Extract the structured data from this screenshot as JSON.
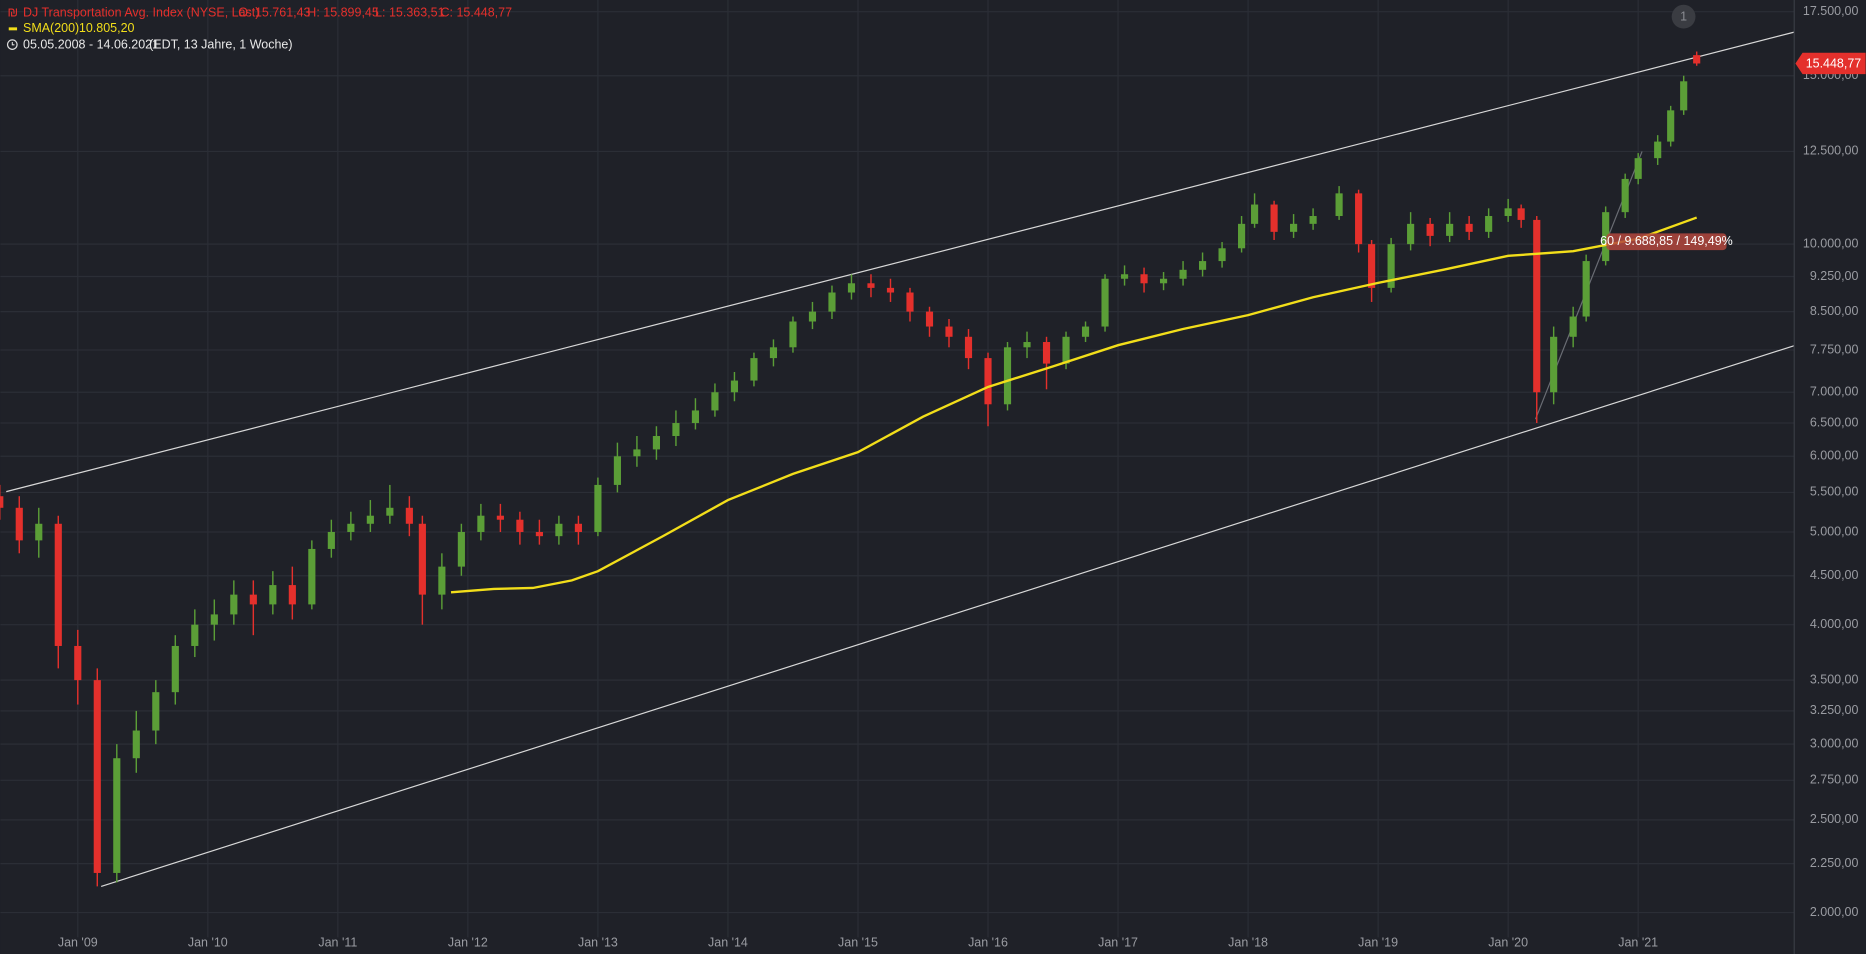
{
  "chart_data": {
    "type": "candlestick",
    "title": "DJ Transportation Avg. Index (NYSE, Last)",
    "ohlc_text": [
      "O: 15.761,43",
      "H: 15.899,45",
      "L: 15.363,51",
      "C: 15.448,77"
    ],
    "sma_text": "10.805,20",
    "period": "05.05.2008 - 14.06.2021",
    "period_note": "(EDT, 13 Jahre, 1 Woche)",
    "badge": "1",
    "log_scale": true,
    "grid": true,
    "up_color": "#5b9e37",
    "down_color": "#e4302c",
    "xlim": [
      2008.405,
      2022.2
    ],
    "xticks": [
      {
        "value": 2009,
        "label": "Jan '09"
      },
      {
        "value": 2010,
        "label": "Jan '10"
      },
      {
        "value": 2011,
        "label": "Jan '11"
      },
      {
        "value": 2012,
        "label": "Jan '12"
      },
      {
        "value": 2013,
        "label": "Jan '13"
      },
      {
        "value": 2014,
        "label": "Jan '14"
      },
      {
        "value": 2015,
        "label": "Jan '15"
      },
      {
        "value": 2016,
        "label": "Jan '16"
      },
      {
        "value": 2017,
        "label": "Jan '17"
      },
      {
        "value": 2018,
        "label": "Jan '18"
      },
      {
        "value": 2019,
        "label": "Jan '19"
      },
      {
        "value": 2020,
        "label": "Jan '20"
      },
      {
        "value": 2021,
        "label": "Jan '21"
      }
    ],
    "ylim": [
      1810,
      18000
    ],
    "yticks": [
      {
        "value": 2000,
        "label": "2.000,00"
      },
      {
        "value": 2250,
        "label": "2.250,00"
      },
      {
        "value": 2500,
        "label": "2.500,00"
      },
      {
        "value": 2750,
        "label": "2.750,00"
      },
      {
        "value": 3000,
        "label": "3.000,00"
      },
      {
        "value": 3250,
        "label": "3.250,00"
      },
      {
        "value": 3500,
        "label": "3.500,00"
      },
      {
        "value": 4000,
        "label": "4.000,00"
      },
      {
        "value": 4500,
        "label": "4.500,00"
      },
      {
        "value": 5000,
        "label": "5.000,00"
      },
      {
        "value": 5500,
        "label": "5.500,00"
      },
      {
        "value": 6000,
        "label": "6.000,00"
      },
      {
        "value": 6500,
        "label": "6.500,00"
      },
      {
        "value": 7000,
        "label": "7.000,00"
      },
      {
        "value": 7750,
        "label": "7.750,00"
      },
      {
        "value": 8500,
        "label": "8.500,00"
      },
      {
        "value": 9250,
        "label": "9.250,00"
      },
      {
        "value": 10000,
        "label": "10.000,00"
      },
      {
        "value": 12500,
        "label": "12.500,00"
      },
      {
        "value": 15000,
        "label": "15.000,00"
      },
      {
        "value": 17500,
        "label": "17.500,00"
      }
    ],
    "x": [
      2008.4,
      2008.55,
      2008.7,
      2008.85,
      2009.0,
      2009.15,
      2009.3,
      2009.45,
      2009.6,
      2009.75,
      2009.9,
      2010.05,
      2010.2,
      2010.35,
      2010.5,
      2010.65,
      2010.8,
      2010.95,
      2011.1,
      2011.25,
      2011.4,
      2011.55,
      2011.65,
      2011.8,
      2011.95,
      2012.1,
      2012.25,
      2012.4,
      2012.55,
      2012.7,
      2012.85,
      2013.0,
      2013.15,
      2013.3,
      2013.45,
      2013.6,
      2013.75,
      2013.9,
      2014.05,
      2014.2,
      2014.35,
      2014.5,
      2014.65,
      2014.8,
      2014.95,
      2015.1,
      2015.25,
      2015.4,
      2015.55,
      2015.7,
      2015.85,
      2016.0,
      2016.15,
      2016.3,
      2016.45,
      2016.6,
      2016.75,
      2016.9,
      2017.05,
      2017.2,
      2017.35,
      2017.5,
      2017.65,
      2017.8,
      2017.95,
      2018.05,
      2018.2,
      2018.35,
      2018.5,
      2018.7,
      2018.85,
      2018.95,
      2019.1,
      2019.25,
      2019.4,
      2019.55,
      2019.7,
      2019.85,
      2020.0,
      2020.1,
      2020.22,
      2020.35,
      2020.5,
      2020.6,
      2020.75,
      2020.9,
      2021.0,
      2021.15,
      2021.25,
      2021.35,
      2021.45
    ],
    "open": [
      5450,
      5300,
      4900,
      5100,
      3800,
      3500,
      2200,
      2900,
      3100,
      3400,
      3800,
      4000,
      4100,
      4300,
      4200,
      4400,
      4200,
      4800,
      5000,
      5100,
      5200,
      5300,
      5100,
      4300,
      4600,
      5000,
      5200,
      5150,
      5000,
      4950,
      5100,
      5000,
      5600,
      6000,
      6100,
      6300,
      6500,
      6700,
      7000,
      7200,
      7600,
      7800,
      8300,
      8500,
      8900,
      9100,
      9000,
      8900,
      8500,
      8200,
      8000,
      7600,
      6800,
      7800,
      7900,
      7500,
      8000,
      8200,
      9200,
      9300,
      9100,
      9200,
      9400,
      9600,
      9900,
      10500,
      11000,
      10300,
      10500,
      10700,
      11300,
      10000,
      9000,
      10000,
      10500,
      10200,
      10500,
      10300,
      10700,
      10900,
      10600,
      7000,
      8000,
      8400,
      9600,
      10800,
      11700,
      12300,
      12800,
      13800,
      15761.43
    ],
    "high": [
      5600,
      5450,
      5300,
      5200,
      3950,
      3600,
      3000,
      3250,
      3500,
      3900,
      4150,
      4250,
      4450,
      4450,
      4550,
      4600,
      4900,
      5150,
      5250,
      5400,
      5600,
      5450,
      5200,
      4750,
      5100,
      5350,
      5350,
      5250,
      5150,
      5200,
      5200,
      5700,
      6200,
      6300,
      6450,
      6700,
      6900,
      7150,
      7350,
      7700,
      7950,
      8400,
      8700,
      9050,
      9300,
      9300,
      9200,
      9000,
      8600,
      8350,
      8150,
      7700,
      7900,
      8100,
      8000,
      8100,
      8300,
      9300,
      9500,
      9450,
      9350,
      9600,
      9800,
      10050,
      10700,
      11300,
      11100,
      10750,
      10900,
      11500,
      11400,
      10100,
      10150,
      10800,
      10650,
      10800,
      10700,
      10900,
      11150,
      11000,
      10700,
      8200,
      8600,
      9750,
      10950,
      11850,
      12450,
      13000,
      13950,
      15000,
      15899.45
    ],
    "low": [
      5150,
      4750,
      4700,
      3600,
      3300,
      2130,
      2150,
      2800,
      3000,
      3300,
      3700,
      3850,
      4000,
      3900,
      4100,
      4050,
      4150,
      4700,
      4900,
      5000,
      5100,
      4950,
      4000,
      4150,
      4500,
      4900,
      5000,
      4850,
      4850,
      4850,
      4850,
      4950,
      5500,
      5850,
      5950,
      6150,
      6400,
      6600,
      6850,
      7100,
      7450,
      7700,
      8150,
      8350,
      8750,
      8800,
      8700,
      8300,
      8000,
      7800,
      7400,
      6450,
      6700,
      7600,
      7050,
      7400,
      7900,
      8100,
      9050,
      8900,
      8950,
      9050,
      9250,
      9450,
      9800,
      10400,
      10100,
      10150,
      10350,
      10600,
      9800,
      8700,
      8900,
      9850,
      9950,
      10050,
      10100,
      10150,
      10550,
      10400,
      6500,
      6800,
      7800,
      8300,
      9500,
      10650,
      11550,
      12100,
      12650,
      13650,
      15363.51
    ],
    "close": [
      5300,
      4900,
      5100,
      3800,
      3500,
      2200,
      2900,
      3100,
      3400,
      3800,
      4000,
      4100,
      4300,
      4200,
      4400,
      4200,
      4800,
      5000,
      5100,
      5200,
      5300,
      5100,
      4300,
      4600,
      5000,
      5200,
      5150,
      5000,
      4950,
      5100,
      5000,
      5600,
      6000,
      6100,
      6300,
      6500,
      6700,
      7000,
      7200,
      7600,
      7800,
      8300,
      8500,
      8900,
      9100,
      9000,
      8900,
      8500,
      8200,
      8000,
      7600,
      6800,
      7800,
      7900,
      7500,
      8000,
      8200,
      9200,
      9300,
      9100,
      9200,
      9400,
      9600,
      9900,
      10500,
      11000,
      10300,
      10500,
      10700,
      11300,
      10000,
      9000,
      10000,
      10500,
      10200,
      10500,
      10300,
      10700,
      10900,
      10600,
      7000,
      8000,
      8400,
      9600,
      10800,
      11700,
      12300,
      12800,
      13800,
      14800,
      15448.77
    ],
    "sma": {
      "name": "SMA(200)",
      "color": "#f2de1a",
      "x": [
        2011.87,
        2012.2,
        2012.5,
        2012.8,
        2013.0,
        2013.5,
        2014.0,
        2014.5,
        2015.0,
        2015.5,
        2016.0,
        2016.5,
        2017.0,
        2017.5,
        2018.0,
        2018.5,
        2019.0,
        2019.5,
        2020.0,
        2020.5,
        2021.0,
        2021.45
      ],
      "values": [
        4325,
        4360,
        4370,
        4450,
        4550,
        4950,
        5400,
        5750,
        6060,
        6600,
        7090,
        7450,
        7840,
        8150,
        8430,
        8800,
        9110,
        9400,
        9720,
        9830,
        10130,
        10660
      ]
    },
    "trend_lines": [
      {
        "color": "#d8d8d8",
        "x": [
          2008.45,
          2022.2
        ],
        "values": [
          5510,
          16660
        ]
      },
      {
        "color": "#d8d8d8",
        "x": [
          2009.18,
          2022.2
        ],
        "values": [
          2130,
          7830
        ]
      },
      {
        "color": "#6a6d74",
        "x": [
          2020.21,
          2021.03
        ],
        "values": [
          6560,
          12500
        ]
      }
    ],
    "measure_label": "60 / 9.688,85 / 149,49%",
    "last_price": {
      "value": 15448.77,
      "label": "15.448,77"
    }
  }
}
